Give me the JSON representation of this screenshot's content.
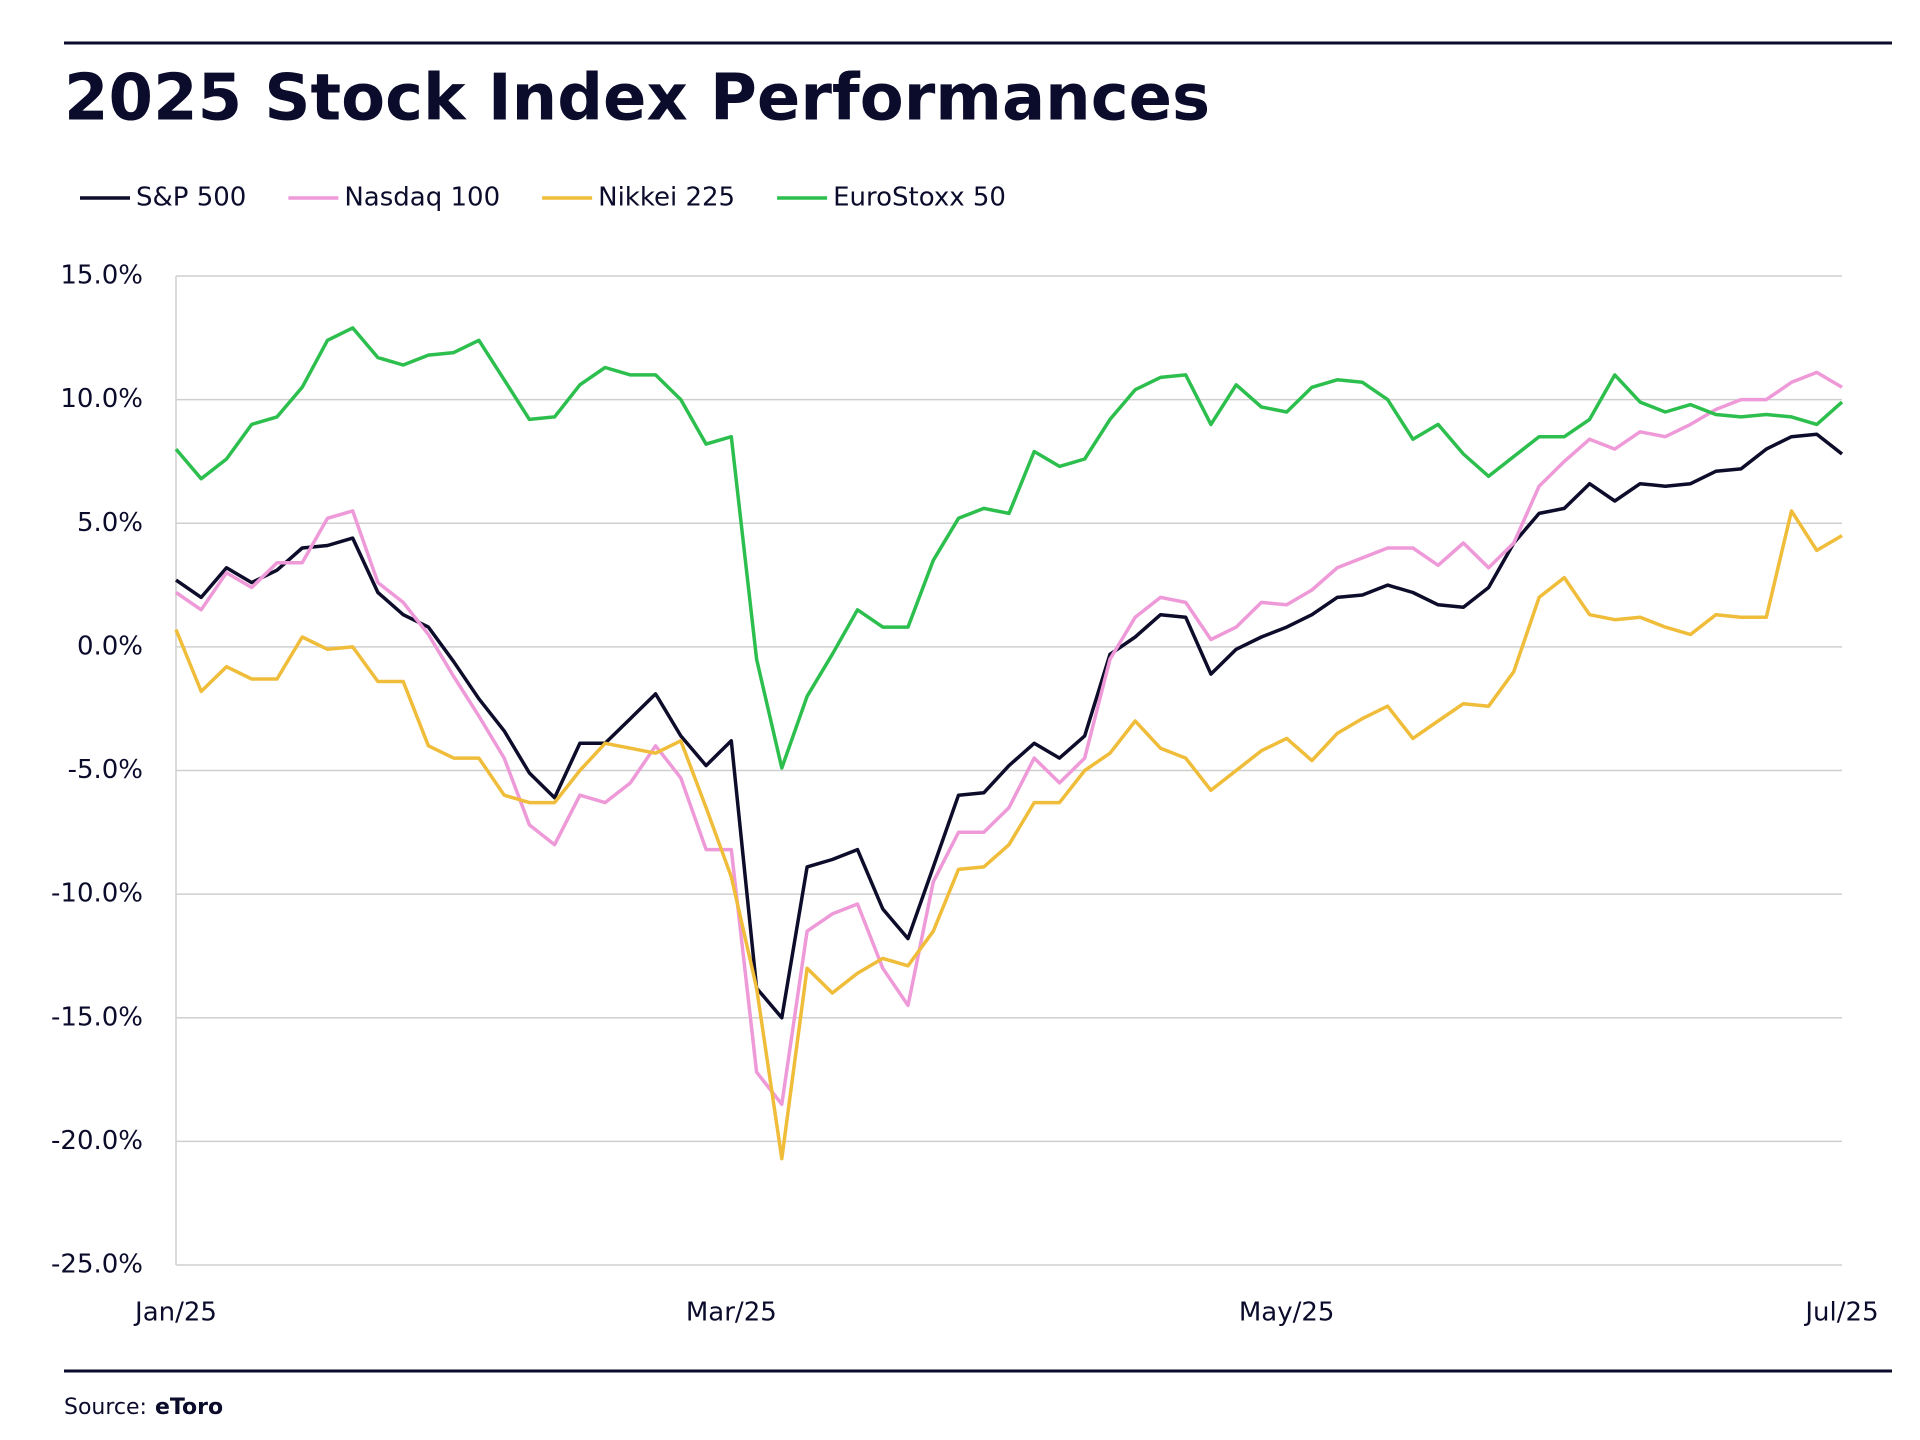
{
  "chart_data": {
    "type": "line",
    "title": "2025 Stock Index Performances",
    "source": {
      "label": "Source:",
      "name": "eToro"
    },
    "categories": [
      "Jan/25",
      null,
      null,
      null,
      null,
      null,
      null,
      null,
      null,
      null,
      null,
      null,
      null,
      null,
      null,
      null,
      null,
      null,
      null,
      null,
      null,
      null,
      "Mar/25",
      null,
      null,
      null,
      null,
      null,
      null,
      null,
      null,
      null,
      null,
      null,
      null,
      null,
      null,
      null,
      null,
      null,
      null,
      null,
      null,
      null,
      "May/25",
      null,
      null,
      null,
      null,
      null,
      null,
      null,
      null,
      null,
      null,
      null,
      null,
      null,
      null,
      null,
      null,
      null,
      null,
      null,
      null,
      null,
      "Jul/25"
    ],
    "ylim": [
      -25,
      15
    ],
    "yticks": [
      {
        "value": -25,
        "label": "-25.0%"
      },
      {
        "value": -20,
        "label": "-20.0%"
      },
      {
        "value": -15,
        "label": "-15.0%"
      },
      {
        "value": -10,
        "label": "-10.0%"
      },
      {
        "value": -5,
        "label": "-5.0%"
      },
      {
        "value": 0,
        "label": "0.0%"
      },
      {
        "value": 5,
        "label": "5.0%"
      },
      {
        "value": 10,
        "label": "10.0%"
      },
      {
        "value": 15,
        "label": "15.0%"
      }
    ],
    "grid": true,
    "legend": "top-left",
    "series": [
      {
        "name": "S&P 500",
        "color": "#0d0d2b",
        "values": [
          2.7,
          2.0,
          3.2,
          2.6,
          3.1,
          4.0,
          4.1,
          4.4,
          2.2,
          1.3,
          0.8,
          -0.6,
          -2.1,
          -3.4,
          -5.1,
          -6.1,
          -3.9,
          -3.9,
          -2.9,
          -1.9,
          -3.6,
          -4.8,
          -3.8,
          -13.8,
          -15.0,
          -8.9,
          -8.6,
          -8.2,
          -10.6,
          -11.8,
          -8.9,
          -6.0,
          -5.9,
          -4.8,
          -3.9,
          -4.5,
          -3.6,
          -0.3,
          0.4,
          1.3,
          1.2,
          -1.1,
          -0.1,
          0.4,
          0.8,
          1.3,
          2.0,
          2.1,
          2.5,
          2.2,
          1.7,
          1.6,
          2.4,
          4.2,
          5.4,
          5.6,
          6.6,
          5.9,
          6.6,
          6.5,
          6.6,
          7.1,
          7.2,
          8.0,
          8.5,
          8.6,
          7.8
        ]
      },
      {
        "name": "Nasdaq 100",
        "color": "#ef9ad8",
        "values": [
          2.2,
          1.5,
          3.0,
          2.4,
          3.4,
          3.4,
          5.2,
          5.5,
          2.6,
          1.8,
          0.5,
          -1.2,
          -2.8,
          -4.5,
          -7.2,
          -8.0,
          -6.0,
          -6.3,
          -5.5,
          -4.0,
          -5.3,
          -8.2,
          -8.2,
          -17.2,
          -18.5,
          -11.5,
          -10.8,
          -10.4,
          -13.0,
          -14.5,
          -9.5,
          -7.5,
          -7.5,
          -6.5,
          -4.5,
          -5.5,
          -4.5,
          -0.5,
          1.2,
          2.0,
          1.8,
          0.3,
          0.8,
          1.8,
          1.7,
          2.3,
          3.2,
          3.6,
          4.0,
          4.0,
          3.3,
          4.2,
          3.2,
          4.2,
          6.5,
          7.5,
          8.4,
          8.0,
          8.7,
          8.5,
          9.0,
          9.6,
          10.0,
          10.0,
          10.7,
          11.1,
          10.5
        ]
      },
      {
        "name": "Nikkei 225",
        "color": "#f0bd3b",
        "values": [
          0.7,
          -1.8,
          -0.8,
          -1.3,
          -1.3,
          0.4,
          -0.1,
          0.0,
          -1.4,
          -1.4,
          -4.0,
          -4.5,
          -4.5,
          -6.0,
          -6.3,
          -6.3,
          -5.0,
          -3.9,
          -4.1,
          -4.3,
          -3.8,
          -6.5,
          -9.3,
          -13.8,
          -20.7,
          -13.0,
          -14.0,
          -13.2,
          -12.6,
          -12.9,
          -11.5,
          -9.0,
          -8.9,
          -8.0,
          -6.3,
          -6.3,
          -5.0,
          -4.3,
          -3.0,
          -4.1,
          -4.5,
          -5.8,
          -5.0,
          -4.2,
          -3.7,
          -4.6,
          -3.5,
          -2.9,
          -2.4,
          -3.7,
          -3.0,
          -2.3,
          -2.4,
          -1.0,
          2.0,
          2.8,
          1.3,
          1.1,
          1.2,
          0.8,
          0.5,
          1.3,
          1.2,
          1.2,
          5.5,
          3.9,
          4.5
        ]
      },
      {
        "name": "EuroStoxx 50",
        "color": "#2dbf4e",
        "values": [
          8.0,
          6.8,
          7.6,
          9.0,
          9.3,
          10.5,
          12.4,
          12.9,
          11.7,
          11.4,
          11.8,
          11.9,
          12.4,
          10.8,
          9.2,
          9.3,
          10.6,
          11.3,
          11.0,
          11.0,
          10.0,
          8.2,
          8.5,
          -0.5,
          -4.9,
          -2.0,
          -0.3,
          1.5,
          0.8,
          0.8,
          3.5,
          5.2,
          5.6,
          5.4,
          7.9,
          7.3,
          7.6,
          9.2,
          10.4,
          10.9,
          11.0,
          9.0,
          10.6,
          9.7,
          9.5,
          10.5,
          10.8,
          10.7,
          10.0,
          8.4,
          9.0,
          7.8,
          6.9,
          7.7,
          8.5,
          8.5,
          9.2,
          11.0,
          9.9,
          9.5,
          9.8,
          9.4,
          9.3,
          9.4,
          9.3,
          9.0,
          9.9
        ]
      }
    ]
  }
}
